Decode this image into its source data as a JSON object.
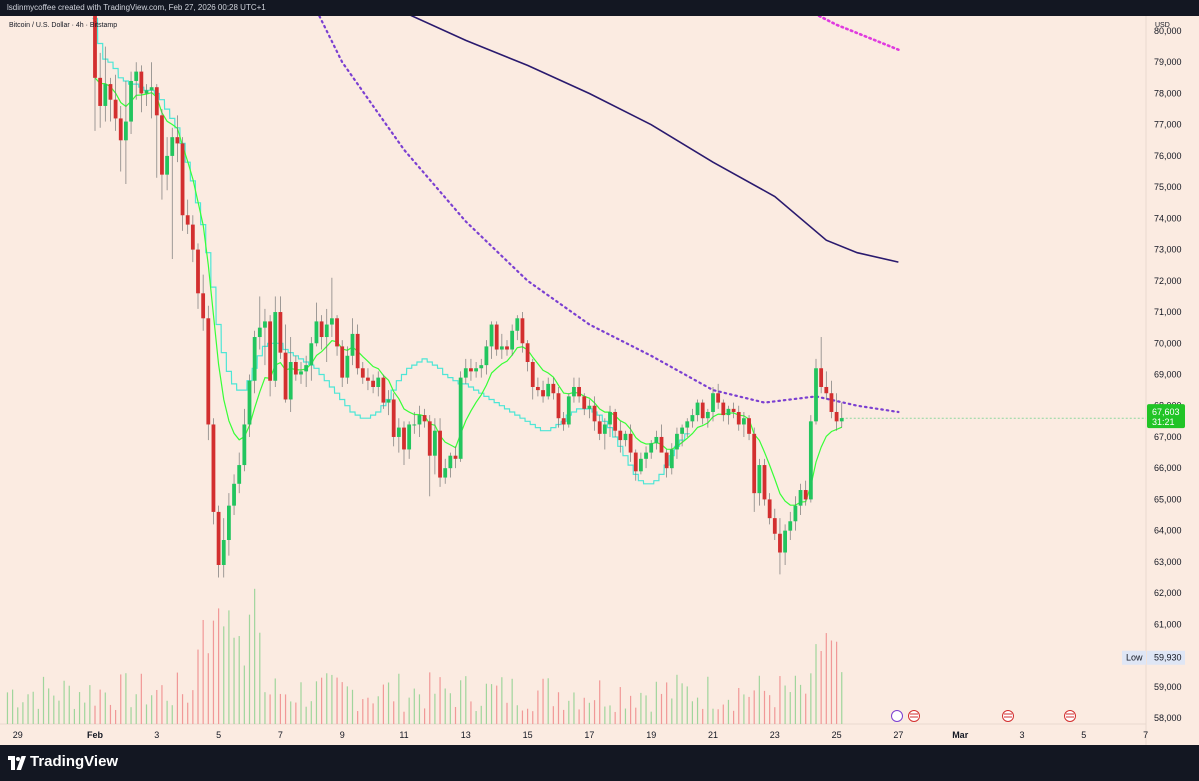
{
  "header": {
    "caption": "lsdinmycoffee created with TradingView.com, Feb 27, 2026 00:28 UTC+1"
  },
  "legend": {
    "symbol": "Bitcoin / U.S. Dollar · 4h · Bitstamp"
  },
  "price_axis": {
    "currency": "USD"
  },
  "footer": {
    "brand": "TradingView"
  },
  "colors": {
    "up": "#22c55e",
    "down": "#d32f2f",
    "fast_ma": "#37ff37",
    "step_ma": "#4de6d6",
    "ma_dotted": "#7b3fd1",
    "ma_solid": "#2a1a6e",
    "ma_magenta": "#e03adf",
    "background": "#fbebe1",
    "frame": "#131722"
  },
  "chart_data": {
    "type": "candlestick",
    "symbol": "Bitcoin / U.S. Dollar · 4h · Bitstamp",
    "ylim": [
      57800,
      80500
    ],
    "y_ticks": [
      "58,000",
      "59,000",
      "60,000",
      "61,000",
      "62,000",
      "63,000",
      "64,000",
      "65,000",
      "66,000",
      "67,000",
      "68,000",
      "69,000",
      "70,000",
      "71,000",
      "72,000",
      "73,000",
      "74,000",
      "75,000",
      "76,000",
      "77,000",
      "78,000",
      "79,000",
      "80,000"
    ],
    "x_ticks": [
      {
        "label": "29",
        "bar": -15
      },
      {
        "label": "Feb",
        "bar": 0
      },
      {
        "label": "3",
        "bar": 12
      },
      {
        "label": "5",
        "bar": 24
      },
      {
        "label": "7",
        "bar": 36
      },
      {
        "label": "9",
        "bar": 48
      },
      {
        "label": "11",
        "bar": 60
      },
      {
        "label": "13",
        "bar": 72
      },
      {
        "label": "15",
        "bar": 84
      },
      {
        "label": "17",
        "bar": 96
      },
      {
        "label": "19",
        "bar": 108
      },
      {
        "label": "21",
        "bar": 120
      },
      {
        "label": "23",
        "bar": 132
      },
      {
        "label": "25",
        "bar": 144
      },
      {
        "label": "27",
        "bar": 156
      },
      {
        "label": "Mar",
        "bar": 168
      },
      {
        "label": "3",
        "bar": 180
      },
      {
        "label": "5",
        "bar": 192
      },
      {
        "label": "7",
        "bar": 204
      }
    ],
    "candles": [
      [
        80600,
        80600,
        76800,
        78500
      ],
      [
        78500,
        79300,
        76900,
        77600
      ],
      [
        77600,
        79500,
        77100,
        78300
      ],
      [
        78300,
        78500,
        77100,
        77800
      ],
      [
        77800,
        78600,
        76800,
        77200
      ],
      [
        77200,
        77600,
        75500,
        76500
      ],
      [
        76500,
        78400,
        75100,
        77100
      ],
      [
        77100,
        78700,
        76700,
        78400
      ],
      [
        78400,
        79000,
        77800,
        78700
      ],
      [
        78700,
        78900,
        77400,
        78000
      ],
      [
        78000,
        78300,
        77600,
        78100
      ],
      [
        78100,
        79000,
        77200,
        78200
      ],
      [
        78200,
        78300,
        75300,
        77300
      ],
      [
        77300,
        77500,
        74600,
        75400
      ],
      [
        75400,
        76600,
        74900,
        76000
      ],
      [
        76000,
        76900,
        72700,
        76600
      ],
      [
        76600,
        77300,
        75800,
        76400
      ],
      [
        76400,
        76600,
        73600,
        74100
      ],
      [
        74100,
        74600,
        73500,
        73800
      ],
      [
        73800,
        74100,
        72600,
        73000
      ],
      [
        73000,
        73200,
        71100,
        71600
      ],
      [
        71600,
        72200,
        70400,
        70800
      ],
      [
        70800,
        71200,
        66900,
        67400
      ],
      [
        67400,
        67600,
        64200,
        64600
      ],
      [
        64600,
        64800,
        62500,
        62900
      ],
      [
        62900,
        64400,
        62500,
        63700
      ],
      [
        63700,
        65200,
        63200,
        64800
      ],
      [
        64800,
        65800,
        64500,
        65500
      ],
      [
        65500,
        66500,
        65200,
        66100
      ],
      [
        66100,
        67900,
        65900,
        67400
      ],
      [
        67400,
        69000,
        67000,
        68800
      ],
      [
        68800,
        70400,
        68400,
        70200
      ],
      [
        70200,
        71500,
        69800,
        70500
      ],
      [
        70500,
        71100,
        69300,
        70700
      ],
      [
        70700,
        70900,
        68300,
        68800
      ],
      [
        68800,
        71500,
        68600,
        71000
      ],
      [
        71000,
        71500,
        69500,
        69700
      ],
      [
        69700,
        70600,
        68100,
        68200
      ],
      [
        68200,
        70200,
        67800,
        69400
      ],
      [
        69400,
        69600,
        68800,
        69000
      ],
      [
        69000,
        69400,
        68700,
        69100
      ],
      [
        69100,
        69600,
        68600,
        69300
      ],
      [
        69300,
        70200,
        68800,
        70000
      ],
      [
        70000,
        71300,
        69900,
        70700
      ],
      [
        70700,
        70900,
        69800,
        70200
      ],
      [
        70200,
        71100,
        69400,
        70600
      ],
      [
        70600,
        72100,
        70200,
        70800
      ],
      [
        70800,
        70900,
        69600,
        69900
      ],
      [
        69900,
        70100,
        68600,
        68900
      ],
      [
        68900,
        69900,
        68700,
        69600
      ],
      [
        69600,
        70800,
        69300,
        70300
      ],
      [
        70300,
        70600,
        69000,
        69200
      ],
      [
        69200,
        69400,
        68700,
        68900
      ],
      [
        68900,
        69200,
        68500,
        68800
      ],
      [
        68800,
        69000,
        68400,
        68600
      ],
      [
        68600,
        69100,
        68300,
        68900
      ],
      [
        68900,
        69000,
        67900,
        68100
      ],
      [
        68100,
        68500,
        67700,
        68200
      ],
      [
        68200,
        68400,
        66700,
        67000
      ],
      [
        67000,
        67600,
        66500,
        67300
      ],
      [
        67300,
        67500,
        66100,
        66600
      ],
      [
        66600,
        67500,
        66300,
        67400
      ],
      [
        67400,
        67800,
        67100,
        67400
      ],
      [
        67400,
        68000,
        67000,
        67700
      ],
      [
        67700,
        67900,
        67300,
        67500
      ],
      [
        67500,
        67700,
        65100,
        66400
      ],
      [
        66400,
        67600,
        65800,
        67200
      ],
      [
        67200,
        67600,
        65400,
        65700
      ],
      [
        65700,
        66300,
        65500,
        66000
      ],
      [
        66000,
        66500,
        65700,
        66400
      ],
      [
        66400,
        66700,
        66000,
        66300
      ],
      [
        66300,
        69100,
        66200,
        68900
      ],
      [
        68900,
        69500,
        68700,
        69200
      ],
      [
        69200,
        69500,
        68800,
        69100
      ],
      [
        69100,
        69400,
        68900,
        69200
      ],
      [
        69200,
        69500,
        68900,
        69300
      ],
      [
        69300,
        70100,
        69000,
        69900
      ],
      [
        69900,
        70700,
        69500,
        70600
      ],
      [
        70600,
        70700,
        69600,
        69800
      ],
      [
        69800,
        70300,
        69500,
        69900
      ],
      [
        69900,
        70100,
        69600,
        69800
      ],
      [
        69800,
        70600,
        69600,
        70400
      ],
      [
        70400,
        70900,
        70100,
        70800
      ],
      [
        70800,
        71000,
        69700,
        70000
      ],
      [
        70000,
        70100,
        69100,
        69400
      ],
      [
        69400,
        69500,
        68200,
        68600
      ],
      [
        68600,
        68900,
        68300,
        68500
      ],
      [
        68500,
        68800,
        68100,
        68300
      ],
      [
        68300,
        68900,
        68200,
        68700
      ],
      [
        68700,
        68900,
        68200,
        68400
      ],
      [
        68400,
        68600,
        67300,
        67600
      ],
      [
        67600,
        67800,
        67200,
        67400
      ],
      [
        67400,
        68400,
        67300,
        68300
      ],
      [
        68300,
        68900,
        68100,
        68600
      ],
      [
        68600,
        68900,
        68100,
        68300
      ],
      [
        68300,
        68400,
        67700,
        67900
      ],
      [
        67900,
        68200,
        67600,
        68000
      ],
      [
        68000,
        68300,
        67200,
        67500
      ],
      [
        67500,
        67700,
        66900,
        67100
      ],
      [
        67100,
        67600,
        66600,
        67400
      ],
      [
        67400,
        68000,
        67000,
        67800
      ],
      [
        67800,
        67900,
        67000,
        67200
      ],
      [
        67200,
        67500,
        66500,
        66900
      ],
      [
        66900,
        67200,
        66700,
        67100
      ],
      [
        67100,
        67400,
        66200,
        66500
      ],
      [
        66500,
        66600,
        65600,
        65900
      ],
      [
        65900,
        66500,
        65800,
        66300
      ],
      [
        66300,
        66700,
        66000,
        66500
      ],
      [
        66500,
        66900,
        66300,
        66800
      ],
      [
        66800,
        67200,
        66600,
        67000
      ],
      [
        67000,
        67400,
        66700,
        66500
      ],
      [
        66500,
        66600,
        65700,
        66000
      ],
      [
        66000,
        66800,
        65800,
        66600
      ],
      [
        66600,
        67300,
        66300,
        67100
      ],
      [
        67100,
        67400,
        66700,
        67300
      ],
      [
        67300,
        67600,
        67000,
        67500
      ],
      [
        67500,
        67900,
        67300,
        67700
      ],
      [
        67700,
        68200,
        67500,
        68100
      ],
      [
        68100,
        68200,
        67400,
        67600
      ],
      [
        67600,
        67900,
        67300,
        67800
      ],
      [
        67800,
        68600,
        67500,
        68400
      ],
      [
        68400,
        68700,
        67900,
        68100
      ],
      [
        68100,
        68200,
        67500,
        67700
      ],
      [
        67700,
        68000,
        67400,
        67900
      ],
      [
        67900,
        68100,
        67600,
        67800
      ],
      [
        67800,
        68000,
        67200,
        67400
      ],
      [
        67400,
        67800,
        67000,
        67600
      ],
      [
        67600,
        67700,
        66900,
        67100
      ],
      [
        67100,
        67300,
        64600,
        65200
      ],
      [
        65200,
        66300,
        64800,
        66100
      ],
      [
        66100,
        66300,
        64800,
        65000
      ],
      [
        65000,
        65200,
        64200,
        64400
      ],
      [
        64400,
        64700,
        63700,
        63900
      ],
      [
        63900,
        64400,
        62600,
        63300
      ],
      [
        63300,
        64200,
        62900,
        64000
      ],
      [
        64000,
        64600,
        63700,
        64300
      ],
      [
        64300,
        65100,
        64000,
        64800
      ],
      [
        64800,
        65500,
        64500,
        65300
      ],
      [
        65300,
        65600,
        64800,
        65000
      ],
      [
        65000,
        67700,
        64900,
        67500
      ],
      [
        67500,
        69500,
        67400,
        69200
      ],
      [
        69200,
        70200,
        68400,
        68600
      ],
      [
        68600,
        69100,
        68200,
        68400
      ],
      [
        68400,
        68800,
        67600,
        67800
      ],
      [
        67800,
        68400,
        67200,
        67500
      ],
      [
        67500,
        68100,
        67300,
        67603
      ]
    ],
    "current_price": "67,603",
    "countdown": "31:21",
    "low_label": "Low",
    "low_price": "59,930",
    "series": [
      {
        "values": [
          80400,
          79600,
          79100,
          79000,
          78800,
          78500,
          78400,
          78300,
          78300,
          78200,
          78100,
          78100,
          78000,
          77800,
          77500,
          77200,
          76900,
          76400,
          75800,
          75200,
          74500,
          73800,
          72900,
          71800,
          70600,
          69700,
          69100,
          68700,
          68500,
          68500,
          68800,
          69200,
          69600,
          69900,
          70000,
          70000,
          70000,
          69800,
          69700,
          69600,
          69500,
          69400,
          69300,
          69200,
          69000,
          68800,
          68600,
          68400,
          68200,
          68000,
          67800,
          67700,
          67600,
          67600,
          67700,
          67800,
          68000,
          68200,
          68500,
          68800,
          69000,
          69200,
          69300,
          69400,
          69500,
          69400,
          69300,
          69200,
          69000,
          68900,
          68800,
          68700,
          68700,
          68600,
          68500,
          68400,
          68300,
          68200,
          68100,
          68000,
          67900,
          67800,
          67700,
          67600,
          67500,
          67400,
          67300,
          67200,
          67200,
          67300,
          67400,
          67500,
          67700,
          67800,
          67900,
          67900,
          67900,
          67800,
          67700,
          67500,
          67300,
          67000,
          66700,
          66400,
          66100,
          65800,
          65600,
          65500,
          65500,
          65600,
          65800,
          66100,
          66400,
          66700,
          66900,
          67100
        ]
      }
    ],
    "ma_dotted": [
      [
        36,
        83000
      ],
      [
        48,
        79000
      ],
      [
        60,
        76200
      ],
      [
        72,
        73900
      ],
      [
        84,
        72000
      ],
      [
        96,
        70600
      ],
      [
        108,
        69600
      ],
      [
        120,
        68500
      ],
      [
        130,
        68100
      ],
      [
        140,
        68300
      ],
      [
        148,
        68000
      ],
      [
        156,
        67800
      ]
    ],
    "ma_solid": [
      [
        60,
        80600
      ],
      [
        72,
        79700
      ],
      [
        84,
        78900
      ],
      [
        96,
        78000
      ],
      [
        108,
        77000
      ],
      [
        120,
        75800
      ],
      [
        132,
        74700
      ],
      [
        142,
        73300
      ],
      [
        148,
        72900
      ],
      [
        156,
        72600
      ]
    ],
    "ma_magenta": [
      [
        138,
        80700
      ],
      [
        144,
        80200
      ],
      [
        150,
        79800
      ],
      [
        156,
        79400
      ]
    ]
  }
}
